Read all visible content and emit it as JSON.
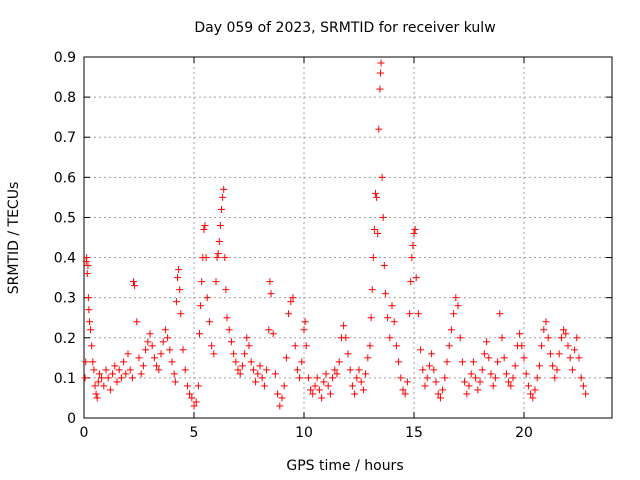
{
  "chart_data": {
    "type": "scatter",
    "title": "Day 059 of 2023, SRMTID for receiver kulw",
    "xlabel": "GPS time / hours",
    "ylabel": "SRMTID / TECUs",
    "xlim": [
      0,
      24
    ],
    "ylim": [
      0,
      0.9
    ],
    "x_ticks": [
      0,
      5,
      10,
      15,
      20
    ],
    "x_tick_labels": [
      "0",
      "5",
      "10",
      "15",
      "20"
    ],
    "y_ticks": [
      0,
      0.1,
      0.2,
      0.3,
      0.4,
      0.5,
      0.6,
      0.7,
      0.8,
      0.9
    ],
    "y_tick_labels": [
      "0",
      "0.1",
      "0.2",
      "0.3",
      "0.4",
      "0.5",
      "0.6",
      "0.7",
      "0.8",
      "0.9"
    ],
    "grid": true,
    "marker": "+",
    "color": "#ff0000",
    "series": [
      {
        "name": "SRMTID",
        "points": [
          [
            0.05,
            0.1
          ],
          [
            0.08,
            0.14
          ],
          [
            0.1,
            0.39
          ],
          [
            0.12,
            0.4
          ],
          [
            0.15,
            0.36
          ],
          [
            0.18,
            0.38
          ],
          [
            0.2,
            0.3
          ],
          [
            0.22,
            0.27
          ],
          [
            0.25,
            0.24
          ],
          [
            0.3,
            0.22
          ],
          [
            0.35,
            0.18
          ],
          [
            0.4,
            0.14
          ],
          [
            0.45,
            0.12
          ],
          [
            0.5,
            0.08
          ],
          [
            0.55,
            0.06
          ],
          [
            0.6,
            0.05
          ],
          [
            0.65,
            0.09
          ],
          [
            0.7,
            0.11
          ],
          [
            0.8,
            0.1
          ],
          [
            0.9,
            0.08
          ],
          [
            1.0,
            0.12
          ],
          [
            1.1,
            0.1
          ],
          [
            1.2,
            0.07
          ],
          [
            1.3,
            0.11
          ],
          [
            1.4,
            0.13
          ],
          [
            1.5,
            0.09
          ],
          [
            1.6,
            0.12
          ],
          [
            1.7,
            0.1
          ],
          [
            1.8,
            0.14
          ],
          [
            1.9,
            0.11
          ],
          [
            2.0,
            0.16
          ],
          [
            2.1,
            0.12
          ],
          [
            2.2,
            0.1
          ],
          [
            2.25,
            0.34
          ],
          [
            2.3,
            0.33
          ],
          [
            2.4,
            0.24
          ],
          [
            2.5,
            0.15
          ],
          [
            2.6,
            0.11
          ],
          [
            2.7,
            0.13
          ],
          [
            2.8,
            0.17
          ],
          [
            2.9,
            0.19
          ],
          [
            3.0,
            0.21
          ],
          [
            3.1,
            0.18
          ],
          [
            3.2,
            0.15
          ],
          [
            3.3,
            0.13
          ],
          [
            3.4,
            0.12
          ],
          [
            3.5,
            0.16
          ],
          [
            3.6,
            0.19
          ],
          [
            3.7,
            0.22
          ],
          [
            3.8,
            0.2
          ],
          [
            3.9,
            0.17
          ],
          [
            4.0,
            0.14
          ],
          [
            4.1,
            0.11
          ],
          [
            4.15,
            0.09
          ],
          [
            4.2,
            0.29
          ],
          [
            4.25,
            0.35
          ],
          [
            4.3,
            0.37
          ],
          [
            4.35,
            0.32
          ],
          [
            4.4,
            0.26
          ],
          [
            4.5,
            0.17
          ],
          [
            4.6,
            0.12
          ],
          [
            4.7,
            0.08
          ],
          [
            4.8,
            0.06
          ],
          [
            4.9,
            0.05
          ],
          [
            5.0,
            0.03
          ],
          [
            5.1,
            0.04
          ],
          [
            5.2,
            0.08
          ],
          [
            5.25,
            0.21
          ],
          [
            5.3,
            0.28
          ],
          [
            5.35,
            0.34
          ],
          [
            5.4,
            0.4
          ],
          [
            5.45,
            0.47
          ],
          [
            5.5,
            0.48
          ],
          [
            5.55,
            0.4
          ],
          [
            5.6,
            0.3
          ],
          [
            5.7,
            0.24
          ],
          [
            5.8,
            0.18
          ],
          [
            5.9,
            0.16
          ],
          [
            6.0,
            0.34
          ],
          [
            6.05,
            0.4
          ],
          [
            6.1,
            0.41
          ],
          [
            6.15,
            0.44
          ],
          [
            6.2,
            0.48
          ],
          [
            6.25,
            0.52
          ],
          [
            6.3,
            0.55
          ],
          [
            6.35,
            0.57
          ],
          [
            6.4,
            0.4
          ],
          [
            6.45,
            0.32
          ],
          [
            6.5,
            0.25
          ],
          [
            6.6,
            0.22
          ],
          [
            6.7,
            0.19
          ],
          [
            6.8,
            0.16
          ],
          [
            6.9,
            0.14
          ],
          [
            7.0,
            0.12
          ],
          [
            7.1,
            0.11
          ],
          [
            7.2,
            0.13
          ],
          [
            7.3,
            0.16
          ],
          [
            7.4,
            0.2
          ],
          [
            7.5,
            0.18
          ],
          [
            7.6,
            0.14
          ],
          [
            7.7,
            0.12
          ],
          [
            7.8,
            0.09
          ],
          [
            7.9,
            0.11
          ],
          [
            8.0,
            0.13
          ],
          [
            8.1,
            0.1
          ],
          [
            8.2,
            0.08
          ],
          [
            8.3,
            0.12
          ],
          [
            8.4,
            0.22
          ],
          [
            8.45,
            0.34
          ],
          [
            8.5,
            0.31
          ],
          [
            8.6,
            0.21
          ],
          [
            8.7,
            0.11
          ],
          [
            8.8,
            0.06
          ],
          [
            8.9,
            0.03
          ],
          [
            9.0,
            0.05
          ],
          [
            9.1,
            0.08
          ],
          [
            9.2,
            0.15
          ],
          [
            9.3,
            0.26
          ],
          [
            9.4,
            0.29
          ],
          [
            9.5,
            0.3
          ],
          [
            9.6,
            0.18
          ],
          [
            9.7,
            0.12
          ],
          [
            9.8,
            0.1
          ],
          [
            9.9,
            0.14
          ],
          [
            10.0,
            0.22
          ],
          [
            10.05,
            0.24
          ],
          [
            10.1,
            0.18
          ],
          [
            10.2,
            0.1
          ],
          [
            10.3,
            0.07
          ],
          [
            10.4,
            0.06
          ],
          [
            10.5,
            0.08
          ],
          [
            10.6,
            0.1
          ],
          [
            10.7,
            0.07
          ],
          [
            10.8,
            0.05
          ],
          [
            10.9,
            0.09
          ],
          [
            11.0,
            0.11
          ],
          [
            11.1,
            0.08
          ],
          [
            11.2,
            0.06
          ],
          [
            11.3,
            0.1
          ],
          [
            11.4,
            0.12
          ],
          [
            11.5,
            0.11
          ],
          [
            11.6,
            0.14
          ],
          [
            11.7,
            0.2
          ],
          [
            11.8,
            0.23
          ],
          [
            11.9,
            0.2
          ],
          [
            12.0,
            0.16
          ],
          [
            12.1,
            0.12
          ],
          [
            12.2,
            0.08
          ],
          [
            12.3,
            0.06
          ],
          [
            12.4,
            0.1
          ],
          [
            12.5,
            0.12
          ],
          [
            12.6,
            0.09
          ],
          [
            12.7,
            0.07
          ],
          [
            12.8,
            0.11
          ],
          [
            12.9,
            0.15
          ],
          [
            13.0,
            0.18
          ],
          [
            13.05,
            0.25
          ],
          [
            13.1,
            0.32
          ],
          [
            13.15,
            0.4
          ],
          [
            13.2,
            0.47
          ],
          [
            13.25,
            0.56
          ],
          [
            13.3,
            0.55
          ],
          [
            13.35,
            0.46
          ],
          [
            13.4,
            0.72
          ],
          [
            13.45,
            0.82
          ],
          [
            13.48,
            0.86
          ],
          [
            13.5,
            0.885
          ],
          [
            13.55,
            0.6
          ],
          [
            13.6,
            0.5
          ],
          [
            13.65,
            0.38
          ],
          [
            13.7,
            0.31
          ],
          [
            13.8,
            0.25
          ],
          [
            13.9,
            0.2
          ],
          [
            14.0,
            0.28
          ],
          [
            14.1,
            0.24
          ],
          [
            14.2,
            0.18
          ],
          [
            14.3,
            0.14
          ],
          [
            14.4,
            0.1
          ],
          [
            14.5,
            0.07
          ],
          [
            14.6,
            0.06
          ],
          [
            14.7,
            0.09
          ],
          [
            14.8,
            0.26
          ],
          [
            14.85,
            0.34
          ],
          [
            14.9,
            0.4
          ],
          [
            14.95,
            0.43
          ],
          [
            15.0,
            0.46
          ],
          [
            15.05,
            0.47
          ],
          [
            15.1,
            0.35
          ],
          [
            15.2,
            0.26
          ],
          [
            15.3,
            0.17
          ],
          [
            15.4,
            0.12
          ],
          [
            15.5,
            0.08
          ],
          [
            15.6,
            0.1
          ],
          [
            15.7,
            0.13
          ],
          [
            15.8,
            0.16
          ],
          [
            15.9,
            0.12
          ],
          [
            16.0,
            0.09
          ],
          [
            16.1,
            0.06
          ],
          [
            16.2,
            0.05
          ],
          [
            16.3,
            0.07
          ],
          [
            16.4,
            0.1
          ],
          [
            16.5,
            0.14
          ],
          [
            16.6,
            0.18
          ],
          [
            16.7,
            0.22
          ],
          [
            16.8,
            0.26
          ],
          [
            16.9,
            0.3
          ],
          [
            17.0,
            0.28
          ],
          [
            17.1,
            0.2
          ],
          [
            17.2,
            0.14
          ],
          [
            17.3,
            0.09
          ],
          [
            17.4,
            0.06
          ],
          [
            17.5,
            0.08
          ],
          [
            17.6,
            0.11
          ],
          [
            17.7,
            0.14
          ],
          [
            17.8,
            0.1
          ],
          [
            17.9,
            0.07
          ],
          [
            18.0,
            0.09
          ],
          [
            18.1,
            0.12
          ],
          [
            18.2,
            0.16
          ],
          [
            18.3,
            0.19
          ],
          [
            18.4,
            0.15
          ],
          [
            18.5,
            0.11
          ],
          [
            18.6,
            0.08
          ],
          [
            18.7,
            0.1
          ],
          [
            18.8,
            0.14
          ],
          [
            18.9,
            0.26
          ],
          [
            19.0,
            0.2
          ],
          [
            19.1,
            0.15
          ],
          [
            19.2,
            0.11
          ],
          [
            19.3,
            0.09
          ],
          [
            19.4,
            0.08
          ],
          [
            19.5,
            0.1
          ],
          [
            19.6,
            0.13
          ],
          [
            19.7,
            0.18
          ],
          [
            19.8,
            0.21
          ],
          [
            19.9,
            0.18
          ],
          [
            20.0,
            0.15
          ],
          [
            20.1,
            0.11
          ],
          [
            20.2,
            0.08
          ],
          [
            20.3,
            0.06
          ],
          [
            20.4,
            0.05
          ],
          [
            20.5,
            0.07
          ],
          [
            20.6,
            0.1
          ],
          [
            20.7,
            0.13
          ],
          [
            20.8,
            0.18
          ],
          [
            20.9,
            0.22
          ],
          [
            21.0,
            0.24
          ],
          [
            21.1,
            0.2
          ],
          [
            21.2,
            0.16
          ],
          [
            21.3,
            0.13
          ],
          [
            21.4,
            0.1
          ],
          [
            21.5,
            0.12
          ],
          [
            21.6,
            0.16
          ],
          [
            21.7,
            0.2
          ],
          [
            21.8,
            0.22
          ],
          [
            21.9,
            0.21
          ],
          [
            22.0,
            0.18
          ],
          [
            22.1,
            0.15
          ],
          [
            22.2,
            0.12
          ],
          [
            22.3,
            0.17
          ],
          [
            22.4,
            0.2
          ],
          [
            22.5,
            0.15
          ],
          [
            22.6,
            0.1
          ],
          [
            22.7,
            0.08
          ],
          [
            22.8,
            0.06
          ]
        ]
      }
    ]
  }
}
